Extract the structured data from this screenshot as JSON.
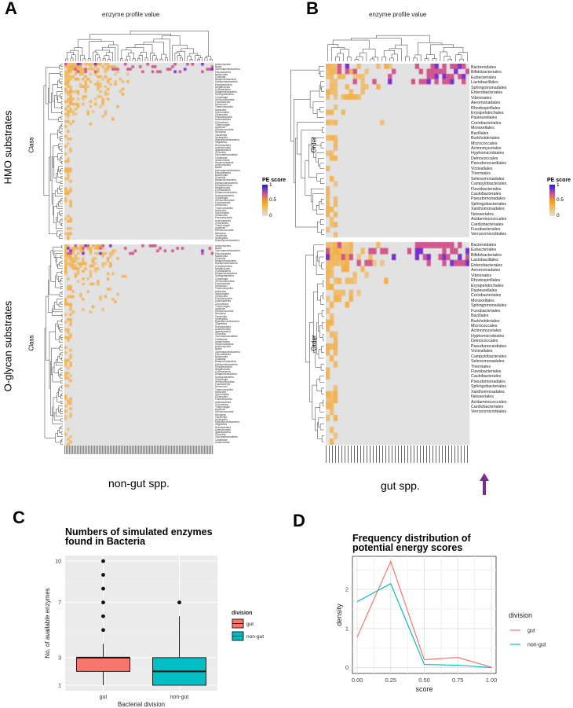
{
  "panels": {
    "a": "A",
    "b": "B",
    "c": "C",
    "d": "D"
  },
  "heatmap_a": {
    "title": "enzyme profile value",
    "row_axis": "Class",
    "top_section": "HMO substrates",
    "bottom_section": "O-glycan substrates",
    "x_label": "non-gut spp.",
    "classes": [
      "Actinomycetia",
      "Bacilli",
      "Gammaproteobacteria",
      "Flavobacteriia",
      "Bacteroidia",
      "Clostridia",
      "Betaproteobacteria",
      "Alphaproteobacteria",
      "Erysipelotrichia",
      "Negativicutes",
      "Coriobacteriia",
      "Deltaproteobacteria",
      "Sphingobacteriia",
      "Cytophagia",
      "Verrucomicrobiae",
      "Fusobacteriia",
      "Deinococci",
      "Thermoleophilia",
      "Mollicutes",
      "Spirochaetia",
      "Chlamydiia",
      "Planctomycetia",
      "Acidobacteriia",
      "Chloroflexia",
      "Thermotogae",
      "Aquificae",
      "Dehalococcoidia",
      "Nitrospira",
      "Tissierellia",
      "Synergistia",
      "Epsilonproteobacteria",
      "Oligoflexia",
      "Rubrobacteria",
      "Acidimicrobiia",
      "Ignavibacteria",
      "Chlorobia",
      "Gemmatimonadetes",
      "Caldilineae",
      "Anaerolineae",
      "Ktedonobacteria"
    ]
  },
  "heatmap_b": {
    "title": "enzyme profile value",
    "row_axis": "Order",
    "x_label": "gut spp.",
    "orders_top": [
      "Bacteroidales",
      "Bifidobacteriales",
      "Eubacteriales",
      "Lactobacillales",
      "Sphingomonadales",
      "Enterobacterales",
      "Vibrionales",
      "Aeromonadales",
      "Rhodospirillales",
      "Erysipelotrichales",
      "Pasteurellales",
      "Coriobacteriales",
      "Moraxellales",
      "Bacillales",
      "Burkholderiales",
      "Micrococcales",
      "Actinomycetales",
      "Hyphomicrobiales",
      "Deinococcales",
      "Pseudonocardiales",
      "Victivallales",
      "Thermales",
      "Selenomonadales",
      "Campylobacterales",
      "Flavobacteriales",
      "Caulobacterales",
      "Pseudomonadales",
      "Sphingobacteriales",
      "Xanthomonadales",
      "Neisseriales",
      "Acidaminococcales",
      "Cardiobacteriales",
      "Fusobacteriales",
      "Verrucomicrobiales"
    ],
    "orders_bottom": [
      "Bacteroidales",
      "Eubacteriales",
      "Bifidobacteriales",
      "Lactobacillales",
      "Enterobacterales",
      "Aeromonadales",
      "Vibrionales",
      "Rhodospirillales",
      "Erysipelotrichales",
      "Pasteurellales",
      "Coriobacteriales",
      "Moraxellales",
      "Sphingomonadales",
      "Fusobacteriales",
      "Bacillales",
      "Burkholderiales",
      "Micrococcales",
      "Actinomycetales",
      "Hyphomicrobiales",
      "Deinococcales",
      "Pseudonocardiales",
      "Victivallales",
      "Campylobacterales",
      "Selenomonadales",
      "Thermales",
      "Flavobacteriales",
      "Caulobacterales",
      "Pseudomonadales",
      "Sphingobacteriales",
      "Xanthomonadales",
      "Neisseriales",
      "Acidaminococcales",
      "Cardiobacteriales",
      "Verrucomicrobiales"
    ]
  },
  "legend_pe": {
    "title": "PE score",
    "ticks": [
      "1",
      "0.5",
      "0"
    ],
    "colors": [
      "#e0e0e0",
      "#f9a11b",
      "#d0568c",
      "#1f1fe0"
    ]
  },
  "chart_data": [
    {
      "type": "box",
      "title": "Numbers of simulated enzymes found in Bacteria",
      "xlabel": "Bacterial division",
      "ylabel": "No. of available enzymes",
      "categories": [
        "gut",
        "non-gut"
      ],
      "ylim": [
        0.6,
        10.4
      ],
      "yticks": [
        1,
        3,
        7,
        10
      ],
      "series": [
        {
          "name": "gut",
          "color": "#f8766d",
          "min": 1,
          "q1": 2,
          "median": 3,
          "q3": 3,
          "max": 4,
          "outliers": [
            5,
            6,
            7,
            8,
            9,
            10
          ]
        },
        {
          "name": "non-gut",
          "color": "#00bfc4",
          "min": 1,
          "q1": 1,
          "median": 2,
          "q3": 3,
          "max": 6,
          "outliers": [
            7
          ]
        }
      ],
      "legend_title": "division",
      "legend": [
        "gut",
        "non-gut"
      ],
      "legend_position": "right"
    },
    {
      "type": "line",
      "title": "Frequency distribution of potential energy scores",
      "xlabel": "score",
      "ylabel": "density",
      "x": [
        0,
        0.25,
        0.5,
        0.75,
        1.0
      ],
      "xticks": [
        "0.00",
        "0.25",
        "0.50",
        "0.75",
        "1.00"
      ],
      "ylim": [
        -0.15,
        2.85
      ],
      "yticks": [
        0,
        1,
        2
      ],
      "series": [
        {
          "name": "gut",
          "color": "#f8766d",
          "values": [
            0.78,
            2.72,
            0.2,
            0.26,
            0.01
          ]
        },
        {
          "name": "non-gut",
          "color": "#00bfc4",
          "values": [
            1.69,
            2.15,
            0.08,
            0.06,
            0.0
          ]
        }
      ],
      "legend_title": "division",
      "legend": [
        "gut",
        "non-gut"
      ],
      "legend_position": "right"
    }
  ]
}
